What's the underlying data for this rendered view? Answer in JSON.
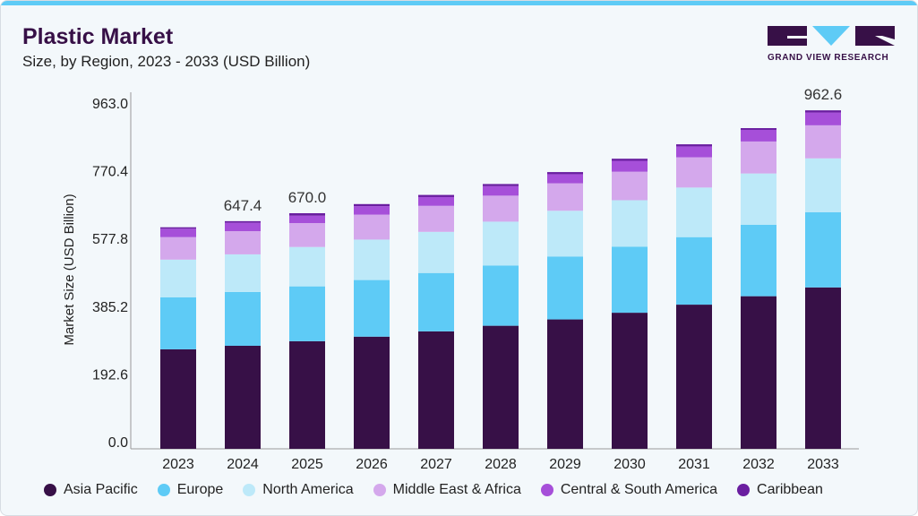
{
  "header": {
    "title": "Plastic Market",
    "subtitle": "Size, by Region, 2023 - 2033 (USD Billion)",
    "logo_text": "GRAND VIEW RESEARCH"
  },
  "chart_data": {
    "type": "bar",
    "stacked": true,
    "title": "Plastic Market",
    "subtitle": "Size, by Region, 2023 - 2033 (USD Billion)",
    "xlabel": "",
    "ylabel": "Market Size (USD Billion)",
    "ylim": [
      0,
      963.0
    ],
    "yticks": [
      "0.0",
      "192.6",
      "385.2",
      "577.8",
      "770.4",
      "963.0"
    ],
    "categories": [
      "2023",
      "2024",
      "2025",
      "2026",
      "2027",
      "2028",
      "2029",
      "2030",
      "2031",
      "2032",
      "2033"
    ],
    "series": [
      {
        "name": "Asia Pacific",
        "color": "#371047",
        "values": [
          283,
          293,
          306,
          319,
          334,
          350,
          368,
          387,
          410,
          434,
          459
        ]
      },
      {
        "name": "Europe",
        "color": "#5ecbf6",
        "values": [
          148,
          153,
          156,
          161,
          166,
          171,
          179,
          188,
          192,
          203,
          214
        ]
      },
      {
        "name": "North America",
        "color": "#bde9f9",
        "values": [
          107,
          107,
          112,
          115,
          117,
          125,
          130,
          132,
          141,
          146,
          153
        ]
      },
      {
        "name": "Middle East & Africa",
        "color": "#d4a8ec",
        "values": [
          64,
          66,
          68,
          71,
          74,
          74,
          78,
          81,
          86,
          91,
          94
        ]
      },
      {
        "name": "Central & South America",
        "color": "#a64fd9",
        "values": [
          24,
          24,
          21,
          24,
          25,
          27,
          26,
          31,
          31,
          33,
          36.5
        ]
      },
      {
        "name": "Caribbean",
        "color": "#6a1ea0",
        "values": [
          4,
          4.4,
          7,
          6,
          6,
          6,
          6,
          6,
          6,
          5,
          6.1
        ]
      }
    ],
    "data_labels": [
      {
        "category": "2024",
        "text": "647.4"
      },
      {
        "category": "2025",
        "text": "670.0"
      },
      {
        "category": "2033",
        "text": "962.6"
      }
    ],
    "grid": false,
    "legend": "bottom"
  }
}
